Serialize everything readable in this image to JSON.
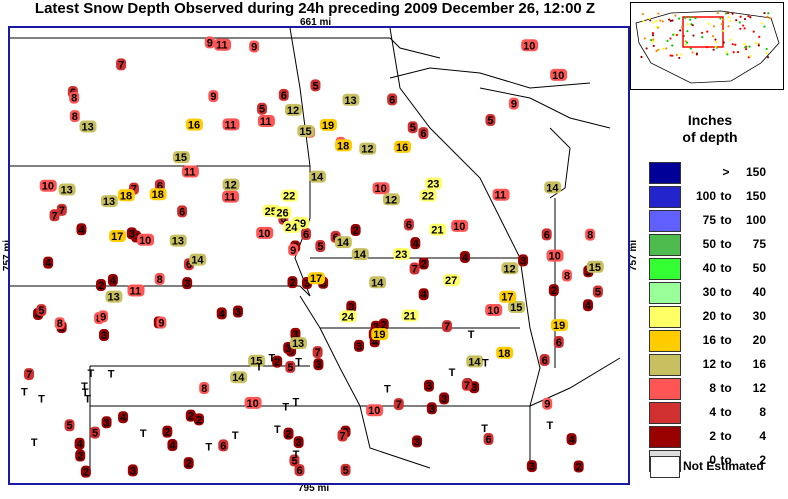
{
  "title": "Latest Snow Depth Observed during 24h preceding 2009 December 26, 12:00 Z",
  "scale": {
    "top": "661 mi",
    "bottom": "795 mi",
    "left": "757 mi",
    "right": "757 mi"
  },
  "legend": {
    "title_line1": "Inches",
    "title_line2": "of depth",
    "bins": [
      {
        "min": "",
        "to": ">",
        "max": "150",
        "color": "#000099"
      },
      {
        "min": "100",
        "to": "to",
        "max": "150",
        "color": "#2424cc"
      },
      {
        "min": "75",
        "to": "to",
        "max": "100",
        "color": "#6060ff"
      },
      {
        "min": "50",
        "to": "to",
        "max": "75",
        "color": "#4dbb4d"
      },
      {
        "min": "40",
        "to": "to",
        "max": "50",
        "color": "#33ff33"
      },
      {
        "min": "30",
        "to": "to",
        "max": "40",
        "color": "#99ff99"
      },
      {
        "min": "20",
        "to": "to",
        "max": "30",
        "color": "#ffff66"
      },
      {
        "min": "16",
        "to": "to",
        "max": "20",
        "color": "#ffcc00"
      },
      {
        "min": "12",
        "to": "to",
        "max": "16",
        "color": "#c8c060"
      },
      {
        "min": "8",
        "to": "to",
        "max": "12",
        "color": "#ff5555"
      },
      {
        "min": "4",
        "to": "to",
        "max": "8",
        "color": "#d03030"
      },
      {
        "min": "2",
        "to": "to",
        "max": "4",
        "color": "#990000"
      },
      {
        "min": "0",
        "to": "to",
        "max": "2",
        "color": "#dddddd"
      }
    ],
    "not_estimated": "Not Estimated"
  },
  "stations": {
    "d3": [
      "3",
      "2",
      "3",
      "4",
      "3",
      "2",
      "4",
      "3",
      "2",
      "3",
      "4",
      "2",
      "3",
      "3",
      "2",
      "4",
      "3",
      "2",
      "3",
      "4",
      "3",
      "2",
      "4",
      "3",
      "2",
      "3",
      "4",
      "3",
      "2",
      "3",
      "4",
      "3",
      "2",
      "3",
      "3",
      "4",
      "2",
      "3",
      "4",
      "3",
      "2",
      "4",
      "3",
      "3",
      "2",
      "4",
      "3",
      "2",
      "3",
      "4",
      "3",
      "2",
      "4",
      "3",
      "3",
      "2",
      "3",
      "4",
      "2",
      "3"
    ],
    "d6": [
      "5",
      "6",
      "7",
      "6",
      "5",
      "7",
      "6",
      "5",
      "6",
      "7",
      "5",
      "6",
      "7",
      "6",
      "5",
      "6",
      "7",
      "5",
      "6",
      "7",
      "6",
      "5",
      "7",
      "6",
      "5",
      "6",
      "7",
      "6",
      "5",
      "7",
      "6",
      "5",
      "6",
      "7",
      "5",
      "6",
      "7",
      "6",
      "5",
      "6"
    ],
    "d10": [
      "10",
      "9",
      "8",
      "10",
      "11",
      "9",
      "8",
      "10",
      "9",
      "11",
      "10",
      "8",
      "9",
      "10",
      "11",
      "8",
      "9",
      "10",
      "11",
      "9",
      "8",
      "10",
      "9",
      "11",
      "10",
      "8",
      "9",
      "10",
      "11",
      "8",
      "9",
      "10",
      "11",
      "9",
      "8",
      "10"
    ],
    "d14": [
      "14",
      "13",
      "15",
      "12",
      "14",
      "13",
      "15",
      "14",
      "12",
      "13",
      "15",
      "14",
      "13",
      "12",
      "14",
      "15",
      "13",
      "14",
      "12",
      "13",
      "15",
      "14",
      "13",
      "12",
      "14"
    ],
    "d18": [
      "18",
      "17",
      "19",
      "16",
      "18",
      "17",
      "19",
      "16",
      "18",
      "17",
      "19",
      "18"
    ],
    "d23": [
      "23",
      "21",
      "24",
      "22",
      "27",
      "25",
      "29",
      "26",
      "23",
      "21",
      "24",
      "22"
    ],
    "dT": [
      "T",
      "T",
      "T",
      "T",
      "T",
      "T",
      "T",
      "T",
      "T",
      "T",
      "T",
      "T",
      "T",
      "T",
      "T",
      "T",
      "T",
      "T",
      "T",
      "T",
      "T",
      "T",
      "T",
      "T"
    ]
  }
}
